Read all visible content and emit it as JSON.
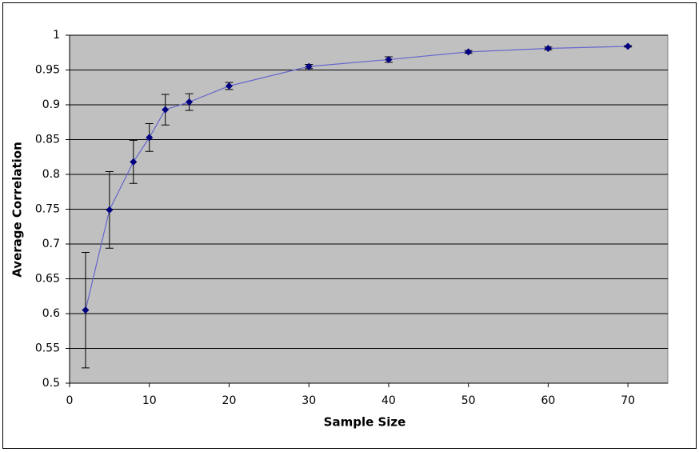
{
  "chart_data": {
    "type": "line",
    "x_label": "Sample Size",
    "y_label": "Average Correlation",
    "x": [
      2,
      5,
      8,
      10,
      12,
      15,
      20,
      30,
      40,
      50,
      60,
      70
    ],
    "values": [
      0.605,
      0.749,
      0.818,
      0.853,
      0.893,
      0.904,
      0.927,
      0.955,
      0.965,
      0.976,
      0.981,
      0.984
    ],
    "errors": [
      0.083,
      0.055,
      0.031,
      0.02,
      0.022,
      0.012,
      0.005,
      0.003,
      0.004,
      0.002,
      0.002,
      0.001
    ],
    "color": "#000080",
    "line_color": "#6666cc",
    "error_color": "#000000",
    "xlim": [
      0,
      75
    ],
    "xticks": [
      0,
      10,
      20,
      30,
      40,
      50,
      60,
      70
    ],
    "ylim": [
      0.5,
      1
    ],
    "yticks": [
      0.5,
      0.55,
      0.6,
      0.65,
      0.7,
      0.75,
      0.8,
      0.85,
      0.9,
      0.95,
      1
    ],
    "grid": true,
    "plot_background": "#c0c0c0"
  }
}
